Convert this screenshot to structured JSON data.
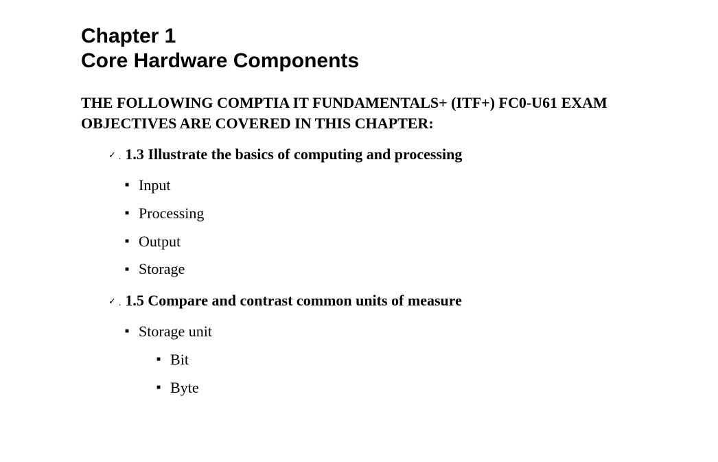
{
  "chapter": {
    "number": "Chapter 1",
    "title": "Core Hardware Components"
  },
  "intro": "THE FOLLOWING COMPTIA IT FUNDAMENTALS+ (ITF+) FC0-U61 EXAM OBJECTIVES ARE COVERED IN THIS CHAPTER:",
  "objectives": [
    {
      "title": "1.3 Illustrate the basics of computing and processing",
      "items": [
        {
          "label": "Input",
          "subitems": []
        },
        {
          "label": "Processing",
          "subitems": []
        },
        {
          "label": "Output",
          "subitems": []
        },
        {
          "label": "Storage",
          "subitems": []
        }
      ]
    },
    {
      "title": "1.5 Compare and contrast common units of measure",
      "items": [
        {
          "label": "Storage unit",
          "subitems": [
            "Bit",
            "Byte"
          ]
        }
      ]
    }
  ],
  "style": {
    "background_color": "#ffffff",
    "text_color": "#000000",
    "chapter_font": "Arial",
    "chapter_fontsize_pt": 22,
    "body_font": "Georgia",
    "intro_fontsize_pt": 16,
    "objective_title_fontsize_pt": 16,
    "list_fontsize_pt": 16,
    "bullet_char": "■",
    "check_char": "✓"
  }
}
